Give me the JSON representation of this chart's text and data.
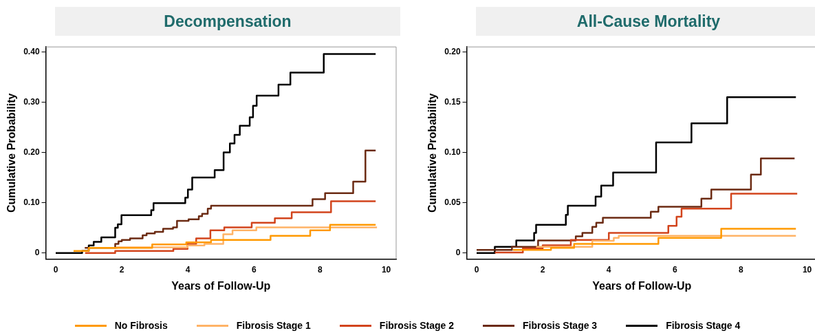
{
  "chart_data": [
    {
      "type": "step",
      "title": "Decompensation",
      "xlabel": "Years of Follow-Up",
      "ylabel": "Cumulative Probability",
      "xlim": [
        -0.3,
        10.3
      ],
      "xticks": [
        0,
        2,
        4,
        6,
        8,
        10
      ],
      "ylim": [
        -0.012,
        0.41
      ],
      "yticks": [
        0,
        {
          "value": 0.1,
          "label": "0.10"
        },
        {
          "value": 0.2,
          "label": "0.20"
        },
        {
          "value": 0.3,
          "label": "0.30"
        },
        {
          "value": 0.4,
          "label": "0.40"
        }
      ],
      "legend": "bottom",
      "grid": false,
      "series": [
        {
          "name": "No Fibrosis",
          "color": "#ff9900",
          "x": [
            0.54,
            1.0,
            2.92,
            3.95,
            4.7,
            6.5,
            7.7,
            8.3,
            9.68
          ],
          "values": [
            0.004,
            0.01,
            0.017,
            0.021,
            0.026,
            0.034,
            0.045,
            0.056,
            0.056
          ]
        },
        {
          "name": "Fibrosis Stage 1",
          "color": "#ffb366",
          "x": [
            1.0,
            1.86,
            3.99,
            4.5,
            5.07,
            5.35,
            6.07,
            8.3,
            9.72
          ],
          "values": [
            0.01,
            0.011,
            0.015,
            0.018,
            0.037,
            0.045,
            0.051,
            0.051,
            0.051
          ]
        },
        {
          "name": "Fibrosis Stage 2",
          "color": "#d2441c",
          "x": [
            0.89,
            1.8,
            3.56,
            3.99,
            4.25,
            4.68,
            5.1,
            5.93,
            6.63,
            7.14,
            8.33,
            9.68
          ],
          "values": [
            0,
            0.004,
            0.008,
            0.018,
            0.029,
            0.045,
            0.051,
            0.06,
            0.069,
            0.081,
            0.103,
            0.103
          ]
        },
        {
          "name": "Fibrosis Stage 3",
          "color": "#6b2a12",
          "x": [
            0.88,
            1.8,
            1.9,
            2.0,
            2.25,
            2.63,
            2.75,
            3.0,
            3.25,
            3.55,
            3.67,
            4.02,
            4.33,
            4.43,
            4.6,
            4.7,
            7.77,
            8.15,
            9.0,
            9.37,
            9.68
          ],
          "values": [
            0.01,
            0.018,
            0.023,
            0.026,
            0.029,
            0.035,
            0.039,
            0.042,
            0.048,
            0.051,
            0.064,
            0.067,
            0.073,
            0.078,
            0.088,
            0.094,
            0.107,
            0.119,
            0.142,
            0.204,
            0.204
          ]
        },
        {
          "name": "Fibrosis Stage 4",
          "color": "#000000",
          "x": [
            0,
            0.8,
            1.0,
            1.15,
            1.38,
            1.8,
            1.88,
            1.99,
            2.89,
            2.96,
            3.92,
            4.0,
            4.13,
            4.81,
            5.08,
            5.27,
            5.41,
            5.57,
            5.87,
            5.97,
            6.08,
            6.74,
            7.1,
            8.11,
            9.68
          ],
          "values": [
            0,
            0.004,
            0.015,
            0.022,
            0.031,
            0.05,
            0.057,
            0.075,
            0.085,
            0.099,
            0.11,
            0.126,
            0.15,
            0.165,
            0.2,
            0.218,
            0.235,
            0.253,
            0.27,
            0.293,
            0.313,
            0.335,
            0.359,
            0.396,
            0.396
          ]
        }
      ]
    },
    {
      "type": "step",
      "title": "All-Cause Mortality",
      "xlabel": "Years of Follow-Up",
      "ylabel": "Cumulative Probability",
      "xlim": [
        -0.3,
        10.3
      ],
      "xticks": [
        0,
        2,
        4,
        6,
        8,
        10
      ],
      "ylim": [
        -0.006,
        0.205
      ],
      "yticks": [
        0,
        {
          "value": 0.05,
          "label": "0.05"
        },
        {
          "value": 0.1,
          "label": "0.10"
        },
        {
          "value": 0.15,
          "label": "0.15"
        },
        {
          "value": 0.2,
          "label": "0.20"
        }
      ],
      "legend": "bottom",
      "grid": false,
      "series": [
        {
          "name": "No Fibrosis",
          "color": "#ff9900",
          "x": [
            1.1,
            2.25,
            2.95,
            5.5,
            7.4,
            9.66
          ],
          "values": [
            0.003,
            0.005,
            0.009,
            0.015,
            0.024,
            0.024
          ]
        },
        {
          "name": "Fibrosis Stage 1",
          "color": "#ffb366",
          "x": [
            1.8,
            3.5,
            4.15,
            4.3,
            9.66
          ],
          "values": [
            0.006,
            0.012,
            0.015,
            0.017,
            0.017
          ]
        },
        {
          "name": "Fibrosis Stage 2",
          "color": "#d2441c",
          "x": [
            0.55,
            1.4,
            2.0,
            2.85,
            4.0,
            5.8,
            6.05,
            6.2,
            7.7,
            9.7
          ],
          "values": [
            0.0005,
            0.0045,
            0.0077,
            0.013,
            0.02,
            0.027,
            0.036,
            0.044,
            0.059,
            0.059
          ]
        },
        {
          "name": "Fibrosis Stage 3",
          "color": "#6b2a12",
          "x": [
            0,
            1.07,
            1.86,
            3.0,
            3.2,
            3.5,
            3.62,
            3.82,
            5.27,
            5.5,
            6.8,
            7.1,
            8.3,
            8.6,
            9.62
          ],
          "values": [
            0.003,
            0.006,
            0.0125,
            0.0165,
            0.02,
            0.026,
            0.03,
            0.035,
            0.041,
            0.046,
            0.054,
            0.063,
            0.078,
            0.094,
            0.094
          ]
        },
        {
          "name": "Fibrosis Stage 4",
          "color": "#000000",
          "x": [
            0,
            0.55,
            1.2,
            1.74,
            1.8,
            2.7,
            2.76,
            3.6,
            3.77,
            4.13,
            5.43,
            6.5,
            7.58,
            9.66
          ],
          "values": [
            0,
            0.006,
            0.0125,
            0.02,
            0.028,
            0.038,
            0.047,
            0.056,
            0.067,
            0.08,
            0.11,
            0.129,
            0.155,
            0.155
          ]
        }
      ]
    }
  ]
}
